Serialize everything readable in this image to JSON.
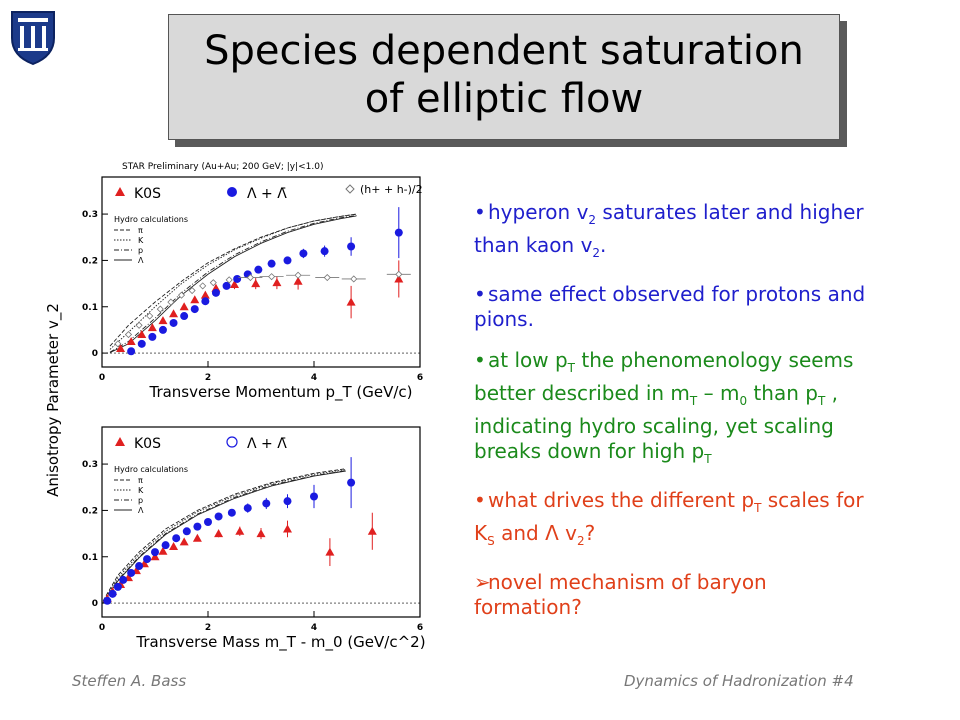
{
  "title": {
    "line1": "Species dependent saturation",
    "line2": "of elliptic flow"
  },
  "bullets": [
    {
      "color": "blue",
      "bullet": "•",
      "parts": [
        [
          "hyperon v",
          ""
        ],
        [
          "2",
          "sub"
        ],
        [
          " saturates later and higher than kaon v",
          ""
        ],
        [
          "2",
          "sub"
        ],
        [
          ".",
          ""
        ]
      ]
    },
    {
      "color": "blue",
      "bullet": "•",
      "parts": [
        [
          "same effect observed for protons and pions.",
          ""
        ]
      ]
    },
    {
      "color": "green",
      "bullet": "•",
      "parts": [
        [
          "at low p",
          ""
        ],
        [
          "T",
          "sub"
        ],
        [
          " the phenomenology seems better described in m",
          ""
        ],
        [
          "T",
          "sub"
        ],
        [
          " – m",
          ""
        ],
        [
          "0",
          "sub"
        ],
        [
          " than p",
          ""
        ],
        [
          "T",
          "sub"
        ],
        [
          " , indicating hydro scaling, yet scaling breaks down for high p",
          ""
        ],
        [
          "T",
          "sub"
        ]
      ]
    },
    {
      "color": "red",
      "bullet": "•",
      "parts": [
        [
          "what drives the different p",
          ""
        ],
        [
          "T",
          "sub"
        ],
        [
          " scales for K",
          ""
        ],
        [
          "S",
          "sub"
        ],
        [
          " and Λ v",
          ""
        ],
        [
          "2",
          "sub"
        ],
        [
          "?",
          ""
        ]
      ]
    },
    {
      "color": "red",
      "bullet": "➢",
      "parts": [
        [
          "novel mechanism of baryon formation?",
          ""
        ]
      ]
    }
  ],
  "footer": {
    "left": "Steffen A. Bass",
    "right": "Dynamics of Hadronization  #4"
  },
  "chart_data": [
    {
      "type": "scatter",
      "title": "STAR Preliminary (Au+Au; 200 GeV; |y|<1.0)",
      "xlabel": "Transverse Momentum p_T (GeV/c)",
      "ylabel": "Anisotropy Parameter v_2",
      "xlim": [
        0,
        6
      ],
      "ylim": [
        -0.03,
        0.38
      ],
      "xticks": [
        0,
        2,
        4,
        6
      ],
      "yticks": [
        0,
        0.1,
        0.2,
        0.3
      ],
      "legend": [
        "K0S",
        "Λ + Λ̄",
        "(h+ + h-)/2"
      ],
      "hydro_legend": {
        "title": "Hydro calculations",
        "items": [
          "π",
          "K",
          "p",
          "Λ"
        ]
      },
      "series": [
        {
          "name": "K0S",
          "marker": "triangle",
          "color": "#e02020",
          "points": [
            [
              0.35,
              0.01
            ],
            [
              0.55,
              0.025
            ],
            [
              0.75,
              0.04
            ],
            [
              0.95,
              0.055
            ],
            [
              1.15,
              0.07
            ],
            [
              1.35,
              0.085
            ],
            [
              1.55,
              0.1
            ],
            [
              1.75,
              0.115
            ],
            [
              1.95,
              0.125
            ],
            [
              2.15,
              0.14
            ],
            [
              2.5,
              0.148
            ],
            [
              2.9,
              0.15
            ],
            [
              3.3,
              0.152
            ],
            [
              3.7,
              0.155
            ],
            [
              4.7,
              0.11
            ],
            [
              5.6,
              0.16
            ]
          ],
          "err": [
            0,
            0,
            0,
            0,
            0,
            0,
            0,
            0,
            0,
            0,
            0.01,
            0.012,
            0.014,
            0.018,
            0.035,
            0.04
          ]
        },
        {
          "name": "Λ + Λ̄",
          "marker": "circle",
          "color": "#1a1ae0",
          "points": [
            [
              0.55,
              0.004
            ],
            [
              0.75,
              0.02
            ],
            [
              0.95,
              0.035
            ],
            [
              1.15,
              0.05
            ],
            [
              1.35,
              0.065
            ],
            [
              1.55,
              0.08
            ],
            [
              1.75,
              0.095
            ],
            [
              1.95,
              0.112
            ],
            [
              2.15,
              0.13
            ],
            [
              2.35,
              0.145
            ],
            [
              2.55,
              0.16
            ],
            [
              2.75,
              0.17
            ],
            [
              2.95,
              0.18
            ],
            [
              3.2,
              0.193
            ],
            [
              3.5,
              0.2
            ],
            [
              3.8,
              0.215
            ],
            [
              4.2,
              0.22
            ],
            [
              4.7,
              0.23
            ],
            [
              5.6,
              0.26
            ]
          ],
          "err": [
            0,
            0,
            0,
            0,
            0,
            0,
            0,
            0,
            0,
            0,
            0,
            0,
            0,
            0.006,
            0.008,
            0.01,
            0.012,
            0.02,
            0.055
          ]
        },
        {
          "name": "(h+ + h-)/2",
          "marker": "diamond",
          "color": "#777777",
          "points": [
            [
              0.3,
              0.02
            ],
            [
              0.5,
              0.04
            ],
            [
              0.7,
              0.06
            ],
            [
              0.9,
              0.08
            ],
            [
              1.1,
              0.095
            ],
            [
              1.3,
              0.11
            ],
            [
              1.5,
              0.125
            ],
            [
              1.7,
              0.135
            ],
            [
              1.9,
              0.145
            ],
            [
              2.1,
              0.152
            ],
            [
              2.4,
              0.158
            ],
            [
              2.8,
              0.163
            ],
            [
              3.2,
              0.165
            ],
            [
              3.7,
              0.168
            ],
            [
              4.25,
              0.163
            ],
            [
              4.75,
              0.16
            ],
            [
              5.6,
              0.17
            ]
          ]
        }
      ],
      "hydro_curves": [
        {
          "name": "π",
          "style": "dashed",
          "points": [
            [
              0.15,
              0.015
            ],
            [
              0.5,
              0.06
            ],
            [
              1,
              0.11
            ],
            [
              1.5,
              0.155
            ],
            [
              2,
              0.195
            ],
            [
              2.5,
              0.225
            ],
            [
              3,
              0.25
            ],
            [
              3.5,
              0.27
            ],
            [
              4,
              0.285
            ],
            [
              4.5,
              0.295
            ],
            [
              4.8,
              0.3
            ]
          ]
        },
        {
          "name": "K",
          "style": "dotted",
          "points": [
            [
              0.15,
              0.008
            ],
            [
              0.5,
              0.045
            ],
            [
              1,
              0.1
            ],
            [
              1.5,
              0.15
            ],
            [
              2,
              0.19
            ],
            [
              2.5,
              0.223
            ],
            [
              3,
              0.248
            ],
            [
              3.5,
              0.27
            ],
            [
              4,
              0.285
            ],
            [
              4.5,
              0.295
            ],
            [
              4.8,
              0.3
            ]
          ]
        },
        {
          "name": "p",
          "style": "dashdot",
          "points": [
            [
              0.15,
              0.002
            ],
            [
              0.5,
              0.025
            ],
            [
              1,
              0.075
            ],
            [
              1.5,
              0.13
            ],
            [
              2,
              0.175
            ],
            [
              2.5,
              0.212
            ],
            [
              3,
              0.24
            ],
            [
              3.5,
              0.263
            ],
            [
              4,
              0.28
            ],
            [
              4.5,
              0.292
            ],
            [
              4.8,
              0.297
            ]
          ]
        },
        {
          "name": "Λ",
          "style": "solid",
          "points": [
            [
              0.15,
              0.001
            ],
            [
              0.5,
              0.02
            ],
            [
              1,
              0.07
            ],
            [
              1.5,
              0.125
            ],
            [
              2,
              0.17
            ],
            [
              2.5,
              0.208
            ],
            [
              3,
              0.237
            ],
            [
              3.5,
              0.26
            ],
            [
              4,
              0.278
            ],
            [
              4.5,
              0.29
            ],
            [
              4.8,
              0.296
            ]
          ]
        }
      ]
    },
    {
      "type": "scatter",
      "xlabel": "Transverse Mass m_T - m_0 (GeV/c^2)",
      "ylabel": "Anisotropy Parameter v_2",
      "xlim": [
        0,
        6
      ],
      "ylim": [
        -0.03,
        0.38
      ],
      "xticks": [
        0,
        2,
        4,
        6
      ],
      "yticks": [
        0,
        0.1,
        0.2,
        0.3
      ],
      "legend": [
        "K0S",
        "Λ + Λ̄"
      ],
      "hydro_legend": {
        "title": "Hydro calculations",
        "items": [
          "π",
          "K",
          "p",
          "Λ"
        ]
      },
      "series": [
        {
          "name": "K0S",
          "marker": "triangle",
          "color": "#e02020",
          "points": [
            [
              0.1,
              0.01
            ],
            [
              0.2,
              0.025
            ],
            [
              0.35,
              0.04
            ],
            [
              0.5,
              0.055
            ],
            [
              0.65,
              0.07
            ],
            [
              0.8,
              0.085
            ],
            [
              1.0,
              0.1
            ],
            [
              1.15,
              0.112
            ],
            [
              1.35,
              0.122
            ],
            [
              1.55,
              0.132
            ],
            [
              1.8,
              0.14
            ],
            [
              2.2,
              0.15
            ],
            [
              2.6,
              0.155
            ],
            [
              3.0,
              0.15
            ],
            [
              3.5,
              0.16
            ],
            [
              4.3,
              0.11
            ],
            [
              5.1,
              0.155
            ]
          ],
          "err": [
            0,
            0,
            0,
            0,
            0,
            0,
            0,
            0,
            0,
            0,
            0,
            0.008,
            0.01,
            0.012,
            0.018,
            0.03,
            0.04
          ]
        },
        {
          "name": "Λ + Λ̄",
          "marker": "circle",
          "color": "#1a1ae0",
          "points": [
            [
              0.1,
              0.005
            ],
            [
              0.2,
              0.02
            ],
            [
              0.3,
              0.035
            ],
            [
              0.4,
              0.05
            ],
            [
              0.55,
              0.065
            ],
            [
              0.7,
              0.08
            ],
            [
              0.85,
              0.095
            ],
            [
              1.0,
              0.11
            ],
            [
              1.2,
              0.125
            ],
            [
              1.4,
              0.14
            ],
            [
              1.6,
              0.155
            ],
            [
              1.8,
              0.165
            ],
            [
              2.0,
              0.175
            ],
            [
              2.2,
              0.187
            ],
            [
              2.45,
              0.195
            ],
            [
              2.75,
              0.205
            ],
            [
              3.1,
              0.215
            ],
            [
              3.5,
              0.22
            ],
            [
              4.0,
              0.23
            ],
            [
              4.7,
              0.26
            ]
          ],
          "err": [
            0,
            0,
            0,
            0,
            0,
            0,
            0,
            0,
            0,
            0,
            0,
            0,
            0,
            0.006,
            0.008,
            0.01,
            0.012,
            0.015,
            0.025,
            0.055
          ]
        }
      ],
      "hydro_curves": [
        {
          "name": "π",
          "style": "dashed",
          "points": [
            [
              0.02,
              0.005
            ],
            [
              0.3,
              0.06
            ],
            [
              0.7,
              0.11
            ],
            [
              1.2,
              0.16
            ],
            [
              1.8,
              0.2
            ],
            [
              2.5,
              0.235
            ],
            [
              3.2,
              0.26
            ],
            [
              4,
              0.28
            ],
            [
              4.6,
              0.29
            ]
          ]
        },
        {
          "name": "K",
          "style": "dotted",
          "points": [
            [
              0.02,
              0.003
            ],
            [
              0.3,
              0.055
            ],
            [
              0.7,
              0.105
            ],
            [
              1.2,
              0.155
            ],
            [
              1.8,
              0.197
            ],
            [
              2.5,
              0.232
            ],
            [
              3.2,
              0.258
            ],
            [
              4,
              0.278
            ],
            [
              4.6,
              0.288
            ]
          ]
        },
        {
          "name": "p",
          "style": "dashdot",
          "points": [
            [
              0.02,
              0.002
            ],
            [
              0.3,
              0.05
            ],
            [
              0.7,
              0.1
            ],
            [
              1.2,
              0.15
            ],
            [
              1.8,
              0.192
            ],
            [
              2.5,
              0.228
            ],
            [
              3.2,
              0.255
            ],
            [
              4,
              0.275
            ],
            [
              4.6,
              0.286
            ]
          ]
        },
        {
          "name": "Λ",
          "style": "solid",
          "points": [
            [
              0.02,
              0.001
            ],
            [
              0.3,
              0.048
            ],
            [
              0.7,
              0.098
            ],
            [
              1.2,
              0.148
            ],
            [
              1.8,
              0.19
            ],
            [
              2.5,
              0.226
            ],
            [
              3.2,
              0.253
            ],
            [
              4,
              0.274
            ],
            [
              4.6,
              0.285
            ]
          ]
        }
      ]
    }
  ],
  "colors": {
    "blue_text": "#1f1fcc",
    "green_text": "#1b8a1b",
    "red_text": "#e0401a",
    "title_box": "#d9d9d9"
  }
}
